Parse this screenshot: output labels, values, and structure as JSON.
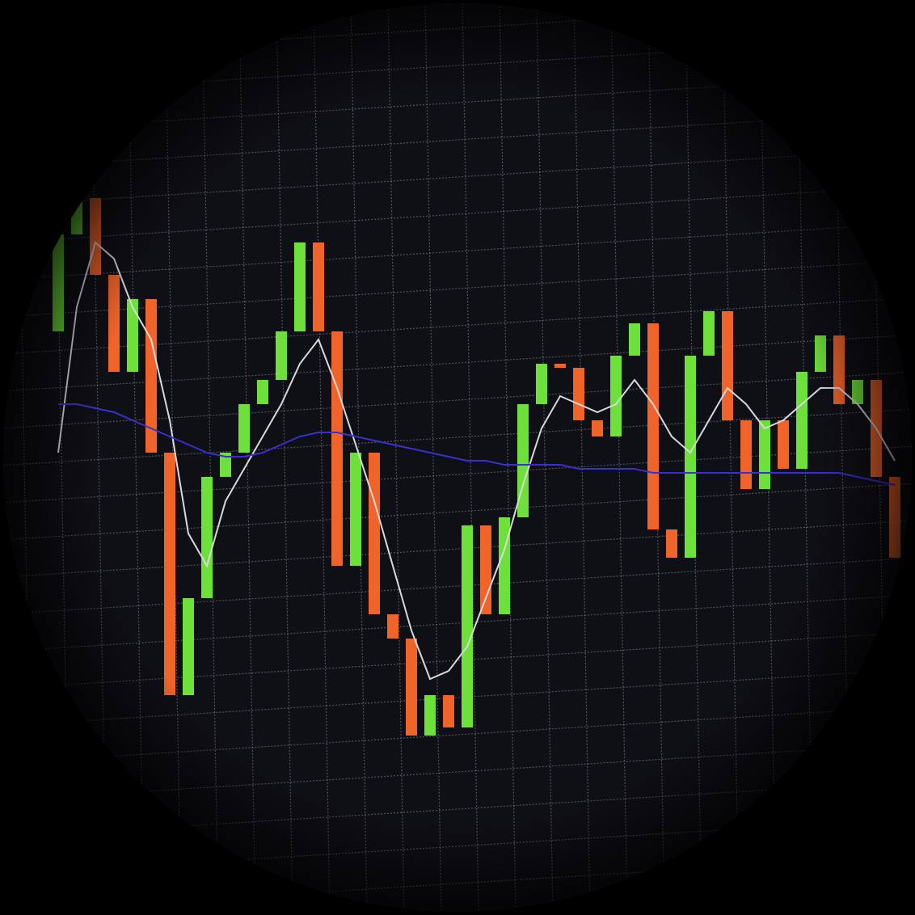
{
  "chart_data": {
    "type": "candlestick",
    "categories": [
      null,
      null,
      null,
      null,
      null,
      null,
      null,
      null,
      null,
      null,
      null,
      null,
      null,
      null,
      null,
      null,
      null,
      null,
      null,
      null,
      null,
      null,
      null,
      null,
      null,
      null,
      null,
      null,
      null,
      null,
      null,
      null,
      null,
      null,
      null,
      null,
      null,
      null,
      null,
      null,
      null,
      null,
      null,
      null,
      null,
      null
    ],
    "open": [
      59,
      71,
      75.5,
      66,
      54,
      63,
      44,
      14,
      26,
      41,
      44,
      50,
      53,
      59,
      70,
      59,
      30,
      44,
      24,
      21,
      9,
      14,
      10,
      35,
      24,
      36,
      50,
      55,
      54.5,
      48,
      46,
      56,
      60,
      34.5,
      31,
      56,
      61.5,
      48,
      39.5,
      48,
      42,
      54,
      58.5,
      50,
      53,
      41
    ],
    "close": [
      71,
      75.5,
      66,
      54,
      63,
      44,
      14,
      26,
      41,
      44,
      50,
      53,
      59,
      70,
      59,
      30,
      44,
      24,
      21,
      9,
      14,
      10,
      35,
      24,
      36,
      50,
      55,
      54.5,
      48,
      46,
      56,
      60,
      34.5,
      31,
      56,
      61.5,
      48,
      39.5,
      48,
      42,
      54,
      58.5,
      50,
      53,
      41,
      31
    ],
    "up_color": "#6ee03a",
    "down_color": "#f0642a",
    "series": [
      {
        "color": "#d8d8de",
        "values": [
          44,
          62,
          70,
          68,
          62,
          58,
          48,
          34,
          30,
          38,
          42,
          46,
          50,
          55,
          58,
          52,
          45,
          38,
          30,
          22,
          16,
          17,
          20,
          26,
          32,
          40,
          47,
          51,
          50,
          49,
          50,
          53,
          50,
          46,
          44,
          48,
          52,
          50,
          47,
          48,
          50,
          52,
          52,
          50,
          47,
          43
        ]
      },
      {
        "color": "#3a2fd0",
        "values": [
          50,
          50,
          49.5,
          49,
          48,
          47,
          46,
          45,
          44,
          43.5,
          43.5,
          44,
          45,
          46,
          46.5,
          46.5,
          46,
          45.5,
          45,
          44.5,
          44,
          43.5,
          43,
          43,
          42.5,
          42.5,
          42.5,
          42.5,
          42,
          42,
          42,
          42,
          41.5,
          41.5,
          41.5,
          41.5,
          41.5,
          41.5,
          41.5,
          41.5,
          41.5,
          41.5,
          41.5,
          41,
          40.5,
          40
        ]
      }
    ],
    "ylim": [
      0,
      100
    ],
    "grid": true
  }
}
